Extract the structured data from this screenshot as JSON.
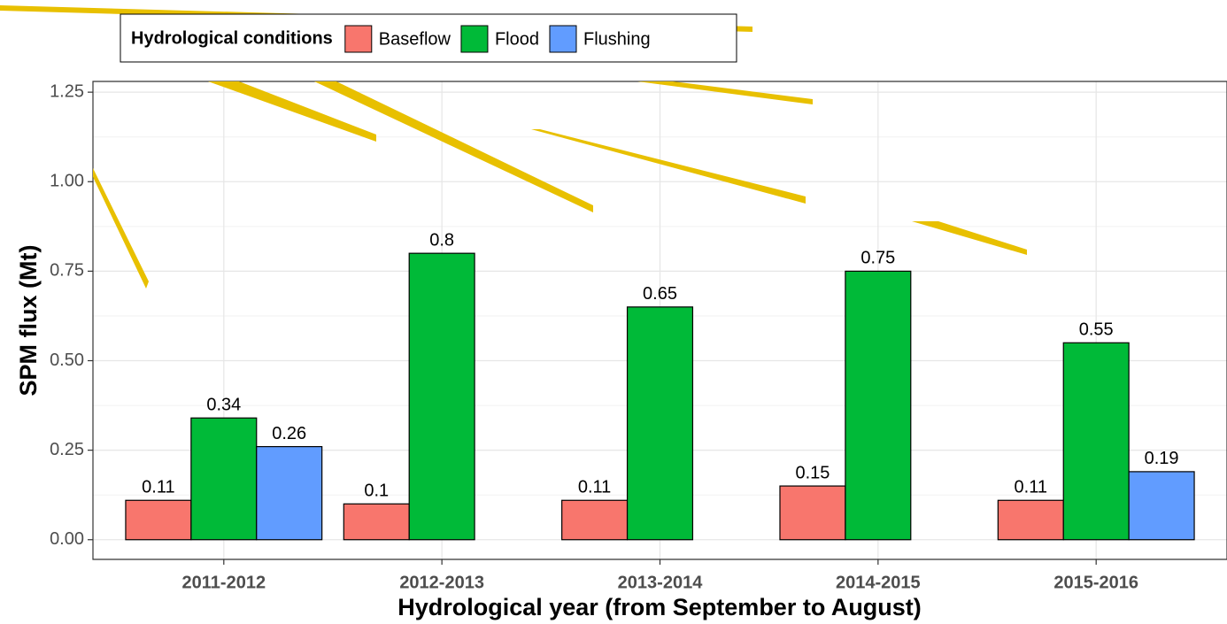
{
  "chart_data": {
    "type": "bar",
    "x_label": "Hydrological year (from September to August)",
    "y_label": "SPM flux (Mt)",
    "legend_title": "Hydrological conditions",
    "legend_position": "top",
    "categories": [
      "2011-2012",
      "2012-2013",
      "2013-2014",
      "2014-2015",
      "2015-2016"
    ],
    "series": [
      {
        "name": "Baseflow",
        "color": "#F8766D",
        "values": [
          0.11,
          0.1,
          0.11,
          0.15,
          0.11
        ]
      },
      {
        "name": "Flood",
        "color": "#00BA38",
        "values": [
          0.34,
          0.8,
          0.65,
          0.75,
          0.55
        ]
      },
      {
        "name": "Flushing",
        "color": "#619CFF",
        "values": [
          0.26,
          null,
          null,
          null,
          0.19
        ]
      }
    ],
    "ylim": [
      -0.055,
      1.28
    ],
    "yticks": [
      {
        "value": 0,
        "label": "0.00"
      },
      {
        "value": 0.25,
        "label": "0.25"
      },
      {
        "value": 0.5,
        "label": "0.50"
      },
      {
        "value": 0.75,
        "label": "0.75"
      },
      {
        "value": 1,
        "label": "1.00"
      },
      {
        "value": 1.25,
        "label": "1.25"
      }
    ],
    "grid": true
  }
}
